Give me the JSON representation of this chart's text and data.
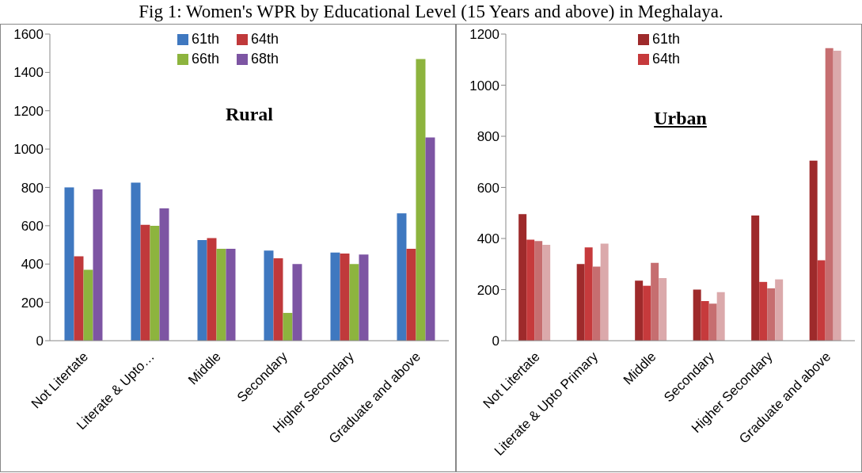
{
  "chart_data": [
    {
      "type": "bar",
      "title": "Fig 1: Women's WPR by Educational Level (15 Years and above) in Meghalaya.",
      "subtitle": "Rural",
      "categories": [
        "Not Litertate",
        "Literate & Upto…",
        "Middle",
        "Secondary",
        "Higher Secondary",
        "Graduate and above"
      ],
      "series": [
        {
          "name": "61th",
          "color": "#3f78c0",
          "values": [
            800,
            825,
            525,
            470,
            460,
            665
          ]
        },
        {
          "name": "64th",
          "color": "#c0393b",
          "values": [
            440,
            605,
            535,
            430,
            455,
            480
          ]
        },
        {
          "name": "66th",
          "color": "#8db43e",
          "values": [
            370,
            600,
            480,
            145,
            400,
            1470
          ]
        },
        {
          "name": "68th",
          "color": "#7d55a3",
          "values": [
            790,
            690,
            480,
            400,
            450,
            1060
          ]
        }
      ],
      "ylim": [
        0,
        1600
      ],
      "yticks": [
        0,
        200,
        400,
        600,
        800,
        1000,
        1200,
        1400,
        1600
      ],
      "legend": "top"
    },
    {
      "type": "bar",
      "subtitle": "Urban",
      "categories": [
        "Not Litertate",
        "Literate & Upto Primary",
        "Middle",
        "Secondary",
        "Higher Secondary",
        "Graduate and above"
      ],
      "series": [
        {
          "name": "61th",
          "color": "#9e2a2b",
          "values": [
            495,
            300,
            235,
            200,
            490,
            705
          ]
        },
        {
          "name": "64th",
          "color": "#c63a3c",
          "values": [
            395,
            365,
            215,
            155,
            230,
            315
          ]
        },
        {
          "color": "#c66e70",
          "values": [
            390,
            290,
            305,
            145,
            205,
            1145
          ]
        },
        {
          "color": "#dba9ab",
          "values": [
            375,
            380,
            245,
            190,
            240,
            1135
          ]
        }
      ],
      "ylim": [
        0,
        1200
      ],
      "yticks": [
        0,
        200,
        400,
        600,
        800,
        1000,
        1200
      ],
      "legend": "top"
    }
  ]
}
